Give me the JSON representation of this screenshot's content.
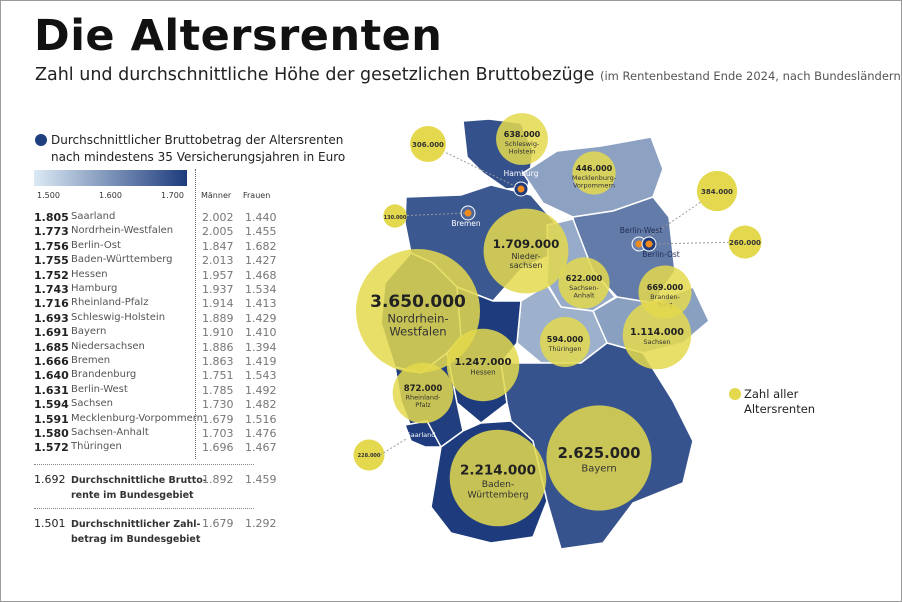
{
  "title": "Die Altersrenten",
  "subtitle": "Zahl und durchschnittliche Höhe der gesetzlichen Bruttobezüge",
  "subtitle_note": "(im Rentenbestand Ende 2024, nach Bundesländern)",
  "legend": {
    "line1": "Durchschnittlicher Bruttobetrag der Altersrenten",
    "line2": "nach mindestens 35 Versicherungsjahren in Euro",
    "scale_ticks": [
      "1.500",
      "1.600",
      "1.700"
    ],
    "scale_colors": [
      "#dbeaf4",
      "#1e3c7d"
    ],
    "count_label_1": "Zahl aller",
    "count_label_2": "Altersrenten",
    "count_color": "#e4d94e"
  },
  "table": {
    "col_men": "Männer",
    "col_women": "Frauen",
    "rows": [
      {
        "avg": "1.805",
        "state": "Saarland",
        "men": "2.002",
        "women": "1.440"
      },
      {
        "avg": "1.773",
        "state": "Nordrhein-Westfalen",
        "men": "2.005",
        "women": "1.455"
      },
      {
        "avg": "1.756",
        "state": "Berlin-Ost",
        "men": "1.847",
        "women": "1.682"
      },
      {
        "avg": "1.755",
        "state": "Baden-Württemberg",
        "men": "2.013",
        "women": "1.427"
      },
      {
        "avg": "1.752",
        "state": "Hessen",
        "men": "1.957",
        "women": "1.468"
      },
      {
        "avg": "1.743",
        "state": "Hamburg",
        "men": "1.937",
        "women": "1.534"
      },
      {
        "avg": "1.716",
        "state": "Rheinland-Pfalz",
        "men": "1.914",
        "women": "1.413"
      },
      {
        "avg": "1.693",
        "state": "Schleswig-Holstein",
        "men": "1.889",
        "women": "1.429"
      },
      {
        "avg": "1.691",
        "state": "Bayern",
        "men": "1.910",
        "women": "1.410"
      },
      {
        "avg": "1.685",
        "state": "Niedersachsen",
        "men": "1.886",
        "women": "1.394"
      },
      {
        "avg": "1.666",
        "state": "Bremen",
        "men": "1.863",
        "women": "1.419"
      },
      {
        "avg": "1.640",
        "state": "Brandenburg",
        "men": "1.751",
        "women": "1.543"
      },
      {
        "avg": "1.631",
        "state": "Berlin-West",
        "men": "1.785",
        "women": "1.492"
      },
      {
        "avg": "1.594",
        "state": "Sachsen",
        "men": "1.730",
        "women": "1.482"
      },
      {
        "avg": "1.591",
        "state": "Mecklenburg-Vorpommern",
        "men": "1.679",
        "women": "1.516"
      },
      {
        "avg": "1.580",
        "state": "Sachsen-Anhalt",
        "men": "1.703",
        "women": "1.476"
      },
      {
        "avg": "1.572",
        "state": "Thüringen",
        "men": "1.696",
        "women": "1.467"
      }
    ],
    "summary": [
      {
        "avg": "1.692",
        "label1": "Durchschnittliche Brutto-",
        "label2": "rente im Bundesgebiet",
        "men": "1.892",
        "women": "1.459"
      },
      {
        "avg": "1.501",
        "label1": "Durchschnittlicher Zahl-",
        "label2": "betrag im Bundesgebiet",
        "men": "1.679",
        "women": "1.292"
      }
    ]
  },
  "map": {
    "states": [
      {
        "id": "SH",
        "avg": 1693,
        "count": "638.000",
        "count_value": 638000,
        "name1": "Schleswig-",
        "name2": "Holstein"
      },
      {
        "id": "MV",
        "avg": 1591,
        "count": "446.000",
        "count_value": 446000,
        "name1": "Mecklenburg-",
        "name2": "Vorpommern"
      },
      {
        "id": "NI",
        "avg": 1685,
        "count": "1.709.000",
        "count_value": 1709000,
        "name1": "Nieder-",
        "name2": "sachsen"
      },
      {
        "id": "BB",
        "avg": 1640,
        "count": "669.000",
        "count_value": 669000,
        "name1": "Branden-",
        "name2": "burg"
      },
      {
        "id": "ST",
        "avg": 1580,
        "count": "622.000",
        "count_value": 622000,
        "name1": "Sachsen-",
        "name2": "Anhalt"
      },
      {
        "id": "NW",
        "avg": 1773,
        "count": "3.650.000",
        "count_value": 3650000,
        "name1": "Nordrhein-",
        "name2": "Westfalen"
      },
      {
        "id": "SN",
        "avg": 1594,
        "count": "1.114.000",
        "count_value": 1114000,
        "name1": "Sachsen",
        "name2": ""
      },
      {
        "id": "TH",
        "avg": 1572,
        "count": "594.000",
        "count_value": 594000,
        "name1": "Thüringen",
        "name2": ""
      },
      {
        "id": "HE",
        "avg": 1752,
        "count": "1.247.000",
        "count_value": 1247000,
        "name1": "Hessen",
        "name2": ""
      },
      {
        "id": "RP",
        "avg": 1716,
        "count": "872.000",
        "count_value": 872000,
        "name1": "Rheinland-",
        "name2": "Pfalz"
      },
      {
        "id": "BW",
        "avg": 1755,
        "count": "2.214.000",
        "count_value": 2214000,
        "name1": "Baden-",
        "name2": "Württemberg"
      },
      {
        "id": "BY",
        "avg": 1691,
        "count": "2.625.000",
        "count_value": 2625000,
        "name1": "Bayern",
        "name2": ""
      },
      {
        "id": "SL",
        "avg": 1805,
        "count": "228.000",
        "count_value": 228000,
        "name1": "Saarland",
        "name2": ""
      }
    ],
    "callouts": [
      {
        "id": "HH",
        "avg": 1743,
        "count": "306.000",
        "count_value": 306000,
        "name": "Hamburg"
      },
      {
        "id": "HB",
        "avg": 1666,
        "count": "130.000",
        "count_value": 130000,
        "name": "Bremen"
      },
      {
        "id": "BW_B",
        "avg": 1631,
        "count": "384.000",
        "count_value": 384000,
        "name": "Berlin-West"
      },
      {
        "id": "BO",
        "avg": 1756,
        "count": "260.000",
        "count_value": 260000,
        "name": "Berlin-Ost"
      }
    ]
  }
}
